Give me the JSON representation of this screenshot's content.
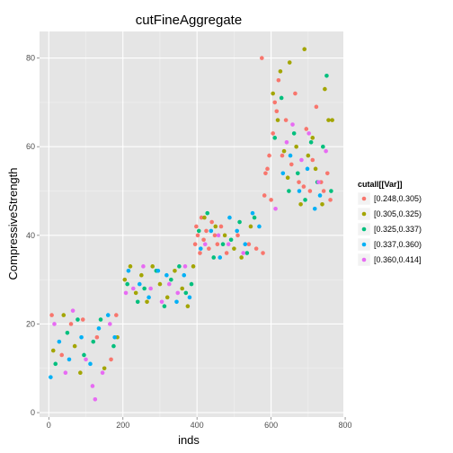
{
  "chart_data": {
    "type": "scatter",
    "title": "cutFineAggregate",
    "xlabel": "inds",
    "ylabel": "CompressiveStrength",
    "xlim": [
      -25,
      795
    ],
    "ylim": [
      -1,
      86
    ],
    "x_ticks": [
      0,
      200,
      400,
      600,
      800
    ],
    "y_ticks": [
      0,
      20,
      40,
      60,
      80
    ],
    "grid": true,
    "legend_position": "right",
    "legend": {
      "title": "cutall[[Var]]",
      "entries": [
        {
          "label": "[0.248,0.305)",
          "color": "#F8766D"
        },
        {
          "label": "[0.305,0.325)",
          "color": "#A3A500"
        },
        {
          "label": "[0.325,0.337)",
          "color": "#00BF7D"
        },
        {
          "label": "[0.337,0.360)",
          "color": "#00B0F6"
        },
        {
          "label": "[0.360,0.414]",
          "color": "#E76BF3"
        }
      ]
    },
    "series": [
      {
        "name": "[0.248,0.305)",
        "points": [
          [
            8,
            22
          ],
          [
            35,
            13
          ],
          [
            60,
            20
          ],
          [
            92,
            21
          ],
          [
            130,
            17
          ],
          [
            168,
            12
          ],
          [
            182,
            22
          ],
          [
            395,
            38
          ],
          [
            398,
            42
          ],
          [
            402,
            40
          ],
          [
            408,
            36
          ],
          [
            412,
            44
          ],
          [
            418,
            39
          ],
          [
            425,
            41
          ],
          [
            432,
            37
          ],
          [
            440,
            43
          ],
          [
            448,
            40
          ],
          [
            455,
            38
          ],
          [
            465,
            42
          ],
          [
            480,
            36
          ],
          [
            510,
            40
          ],
          [
            540,
            38
          ],
          [
            560,
            37
          ],
          [
            575,
            80
          ],
          [
            578,
            36
          ],
          [
            582,
            49
          ],
          [
            585,
            54
          ],
          [
            590,
            55
          ],
          [
            595,
            58
          ],
          [
            600,
            48
          ],
          [
            605,
            63
          ],
          [
            610,
            70
          ],
          [
            615,
            68
          ],
          [
            620,
            75
          ],
          [
            630,
            58
          ],
          [
            640,
            66
          ],
          [
            655,
            56
          ],
          [
            665,
            72
          ],
          [
            675,
            52
          ],
          [
            688,
            51
          ],
          [
            695,
            64
          ],
          [
            705,
            50
          ],
          [
            712,
            57
          ],
          [
            722,
            69
          ],
          [
            735,
            52
          ],
          [
            742,
            50
          ],
          [
            752,
            54
          ],
          [
            760,
            48
          ]
        ]
      },
      {
        "name": "[0.305,0.325)",
        "points": [
          [
            12,
            14
          ],
          [
            40,
            22
          ],
          [
            70,
            15
          ],
          [
            85,
            9
          ],
          [
            150,
            10
          ],
          [
            185,
            17
          ],
          [
            205,
            30
          ],
          [
            220,
            33
          ],
          [
            235,
            27
          ],
          [
            250,
            31
          ],
          [
            265,
            25
          ],
          [
            280,
            33
          ],
          [
            300,
            29
          ],
          [
            320,
            26
          ],
          [
            340,
            32
          ],
          [
            360,
            28
          ],
          [
            375,
            24
          ],
          [
            390,
            33
          ],
          [
            420,
            44
          ],
          [
            450,
            42
          ],
          [
            475,
            40
          ],
          [
            500,
            37
          ],
          [
            520,
            35
          ],
          [
            545,
            42
          ],
          [
            605,
            72
          ],
          [
            618,
            66
          ],
          [
            625,
            77
          ],
          [
            635,
            59
          ],
          [
            645,
            53
          ],
          [
            650,
            79
          ],
          [
            668,
            60
          ],
          [
            680,
            47
          ],
          [
            690,
            82
          ],
          [
            700,
            58
          ],
          [
            712,
            62
          ],
          [
            720,
            55
          ],
          [
            738,
            47
          ],
          [
            745,
            73
          ],
          [
            755,
            66
          ],
          [
            765,
            66
          ]
        ]
      },
      {
        "name": "[0.325,0.337)",
        "points": [
          [
            18,
            11
          ],
          [
            50,
            18
          ],
          [
            78,
            21
          ],
          [
            95,
            13
          ],
          [
            120,
            16
          ],
          [
            140,
            21
          ],
          [
            175,
            15
          ],
          [
            212,
            29
          ],
          [
            240,
            25
          ],
          [
            258,
            28
          ],
          [
            290,
            32
          ],
          [
            312,
            24
          ],
          [
            330,
            30
          ],
          [
            352,
            33
          ],
          [
            370,
            27
          ],
          [
            385,
            29
          ],
          [
            405,
            41
          ],
          [
            428,
            45
          ],
          [
            445,
            35
          ],
          [
            470,
            38
          ],
          [
            492,
            39
          ],
          [
            515,
            43
          ],
          [
            535,
            36
          ],
          [
            555,
            44
          ],
          [
            610,
            62
          ],
          [
            628,
            71
          ],
          [
            648,
            50
          ],
          [
            662,
            63
          ],
          [
            672,
            54
          ],
          [
            692,
            48
          ],
          [
            708,
            61
          ],
          [
            725,
            52
          ],
          [
            740,
            60
          ],
          [
            750,
            76
          ],
          [
            762,
            50
          ]
        ]
      },
      {
        "name": "[0.337,0.360)",
        "points": [
          [
            5,
            8
          ],
          [
            28,
            16
          ],
          [
            55,
            12
          ],
          [
            88,
            17
          ],
          [
            112,
            11
          ],
          [
            135,
            19
          ],
          [
            160,
            22
          ],
          [
            178,
            17
          ],
          [
            215,
            32
          ],
          [
            245,
            29
          ],
          [
            270,
            26
          ],
          [
            295,
            32
          ],
          [
            318,
            31
          ],
          [
            345,
            25
          ],
          [
            365,
            31
          ],
          [
            380,
            26
          ],
          [
            410,
            37
          ],
          [
            438,
            41
          ],
          [
            462,
            35
          ],
          [
            488,
            44
          ],
          [
            508,
            41
          ],
          [
            530,
            38
          ],
          [
            550,
            45
          ],
          [
            568,
            42
          ],
          [
            632,
            54
          ],
          [
            652,
            58
          ],
          [
            676,
            50
          ],
          [
            698,
            55
          ],
          [
            718,
            46
          ],
          [
            732,
            49
          ]
        ]
      },
      {
        "name": "[0.360,0.414]",
        "points": [
          [
            15,
            20
          ],
          [
            45,
            9
          ],
          [
            65,
            23
          ],
          [
            100,
            12
          ],
          [
            118,
            6
          ],
          [
            125,
            3
          ],
          [
            145,
            9
          ],
          [
            165,
            20
          ],
          [
            208,
            27
          ],
          [
            228,
            28
          ],
          [
            255,
            33
          ],
          [
            275,
            28
          ],
          [
            305,
            25
          ],
          [
            325,
            29
          ],
          [
            348,
            27
          ],
          [
            368,
            33
          ],
          [
            422,
            38
          ],
          [
            458,
            40
          ],
          [
            485,
            38
          ],
          [
            525,
            36
          ],
          [
            612,
            46
          ],
          [
            642,
            61
          ],
          [
            658,
            65
          ],
          [
            682,
            57
          ],
          [
            702,
            63
          ],
          [
            728,
            52
          ],
          [
            748,
            59
          ]
        ]
      }
    ]
  }
}
